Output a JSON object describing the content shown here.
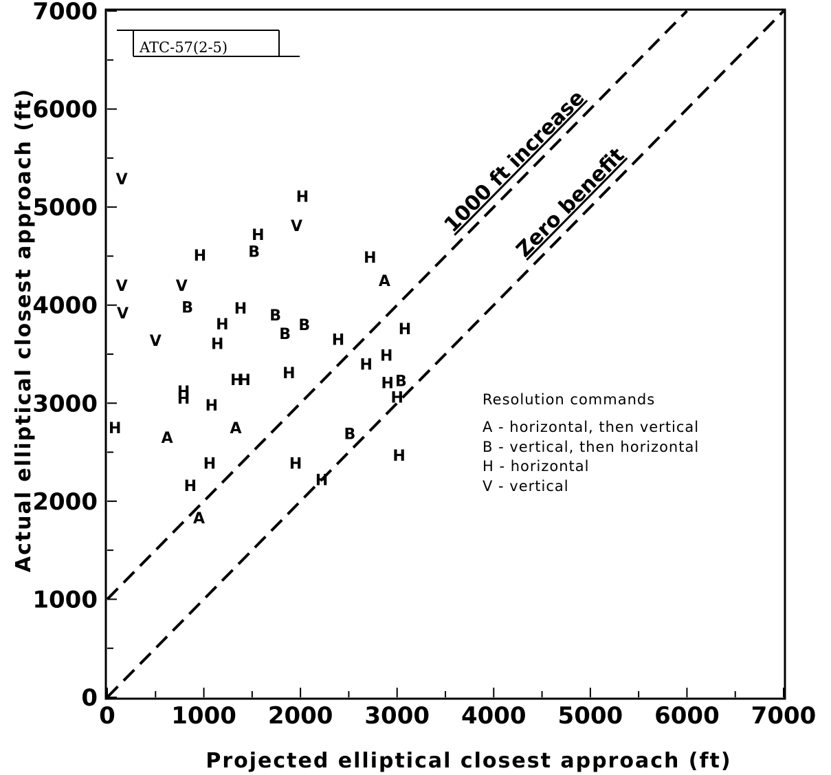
{
  "stamp": "ATC-57(2-5)",
  "chart_data": {
    "type": "scatter",
    "xlabel": "Projected elliptical closest approach (ft)",
    "ylabel": "Actual elliptical closest approach (ft)",
    "xlim": [
      0,
      7000
    ],
    "ylim": [
      0,
      7000
    ],
    "x_ticks": [
      "0",
      "1000",
      "2000",
      "3000",
      "4000",
      "5000",
      "6000",
      "7000"
    ],
    "y_ticks": [
      "0",
      "1000",
      "2000",
      "3000",
      "4000",
      "5000",
      "6000",
      "7000"
    ],
    "grid": false,
    "reference_lines": [
      {
        "label": "1000 ft increase",
        "style": "dashed",
        "points": [
          [
            0,
            1000
          ],
          [
            6000,
            7000
          ]
        ]
      },
      {
        "label": "Zero benefit",
        "style": "dashed",
        "points": [
          [
            0,
            0
          ],
          [
            7000,
            7000
          ]
        ]
      }
    ],
    "legend": {
      "title": "Resolution commands",
      "placement": "right",
      "entries": [
        "A - horizontal, then vertical",
        "B - vertical, then horizontal",
        "H - horizontal",
        "V - vertical"
      ]
    },
    "points": [
      {
        "x": 150,
        "y": 5290,
        "label": "V"
      },
      {
        "x": 150,
        "y": 4200,
        "label": "V"
      },
      {
        "x": 160,
        "y": 3920,
        "label": "V"
      },
      {
        "x": 500,
        "y": 3640,
        "label": "V"
      },
      {
        "x": 770,
        "y": 4200,
        "label": "V"
      },
      {
        "x": 1960,
        "y": 4810,
        "label": "V"
      },
      {
        "x": 2020,
        "y": 5110,
        "label": "H"
      },
      {
        "x": 1560,
        "y": 4720,
        "label": "H"
      },
      {
        "x": 1520,
        "y": 4550,
        "label": "B"
      },
      {
        "x": 960,
        "y": 4510,
        "label": "H"
      },
      {
        "x": 2720,
        "y": 4490,
        "label": "H"
      },
      {
        "x": 2870,
        "y": 4250,
        "label": "A"
      },
      {
        "x": 830,
        "y": 3980,
        "label": "B"
      },
      {
        "x": 1380,
        "y": 3970,
        "label": "H"
      },
      {
        "x": 1740,
        "y": 3900,
        "label": "B"
      },
      {
        "x": 1190,
        "y": 3810,
        "label": "H"
      },
      {
        "x": 2040,
        "y": 3800,
        "label": "B"
      },
      {
        "x": 1840,
        "y": 3710,
        "label": "B"
      },
      {
        "x": 3080,
        "y": 3760,
        "label": "H"
      },
      {
        "x": 1140,
        "y": 3610,
        "label": "H"
      },
      {
        "x": 2390,
        "y": 3650,
        "label": "H"
      },
      {
        "x": 2890,
        "y": 3490,
        "label": "H"
      },
      {
        "x": 2680,
        "y": 3400,
        "label": "H"
      },
      {
        "x": 1880,
        "y": 3310,
        "label": "H"
      },
      {
        "x": 1340,
        "y": 3240,
        "label": "H"
      },
      {
        "x": 1420,
        "y": 3240,
        "label": "H"
      },
      {
        "x": 2900,
        "y": 3210,
        "label": "H"
      },
      {
        "x": 3040,
        "y": 3230,
        "label": "B"
      },
      {
        "x": 790,
        "y": 3120,
        "label": "H"
      },
      {
        "x": 790,
        "y": 3050,
        "label": "H"
      },
      {
        "x": 3000,
        "y": 3060,
        "label": "H"
      },
      {
        "x": 1080,
        "y": 2980,
        "label": "H"
      },
      {
        "x": 80,
        "y": 2750,
        "label": "H"
      },
      {
        "x": 1330,
        "y": 2750,
        "label": "A"
      },
      {
        "x": 620,
        "y": 2650,
        "label": "A"
      },
      {
        "x": 2510,
        "y": 2690,
        "label": "B"
      },
      {
        "x": 3020,
        "y": 2470,
        "label": "H"
      },
      {
        "x": 1060,
        "y": 2390,
        "label": "H"
      },
      {
        "x": 1950,
        "y": 2390,
        "label": "H"
      },
      {
        "x": 2220,
        "y": 2220,
        "label": "H"
      },
      {
        "x": 860,
        "y": 2160,
        "label": "H"
      },
      {
        "x": 950,
        "y": 1830,
        "label": "A"
      }
    ]
  }
}
